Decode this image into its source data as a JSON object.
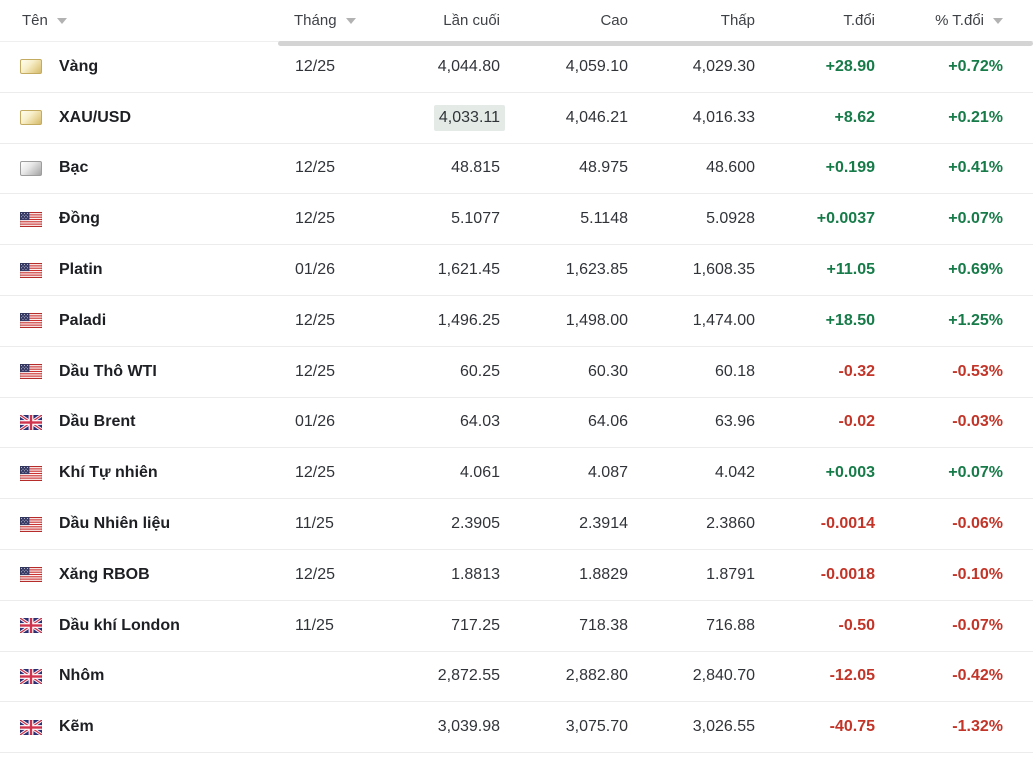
{
  "table": {
    "columns": [
      {
        "key": "name",
        "label": "Tên",
        "sortable": true
      },
      {
        "key": "month",
        "label": "Tháng",
        "sortable": true
      },
      {
        "key": "last",
        "label": "Lần cuối",
        "sortable": false
      },
      {
        "key": "high",
        "label": "Cao",
        "sortable": false
      },
      {
        "key": "low",
        "label": "Thấp",
        "sortable": false
      },
      {
        "key": "change",
        "label": "T.đổi",
        "sortable": false
      },
      {
        "key": "change_pct",
        "label": "% T.đổi",
        "sortable": true
      }
    ],
    "rows": [
      {
        "name": "Vàng",
        "icon": "gold-bar",
        "month": "12/25",
        "last": "4,044.80",
        "high": "4,059.10",
        "low": "4,029.30",
        "change": "+28.90",
        "change_pct": "+0.72%",
        "direction": "up",
        "last_flash": false
      },
      {
        "name": "XAU/USD",
        "icon": "gold-bar",
        "month": "",
        "last": "4,033.11",
        "high": "4,046.21",
        "low": "4,016.33",
        "change": "+8.62",
        "change_pct": "+0.21%",
        "direction": "up",
        "last_flash": true
      },
      {
        "name": "Bạc",
        "icon": "silver-bar",
        "month": "12/25",
        "last": "48.815",
        "high": "48.975",
        "low": "48.600",
        "change": "+0.199",
        "change_pct": "+0.41%",
        "direction": "up",
        "last_flash": false
      },
      {
        "name": "Đồng",
        "icon": "us-flag",
        "month": "12/25",
        "last": "5.1077",
        "high": "5.1148",
        "low": "5.0928",
        "change": "+0.0037",
        "change_pct": "+0.07%",
        "direction": "up",
        "last_flash": false
      },
      {
        "name": "Platin",
        "icon": "us-flag",
        "month": "01/26",
        "last": "1,621.45",
        "high": "1,623.85",
        "low": "1,608.35",
        "change": "+11.05",
        "change_pct": "+0.69%",
        "direction": "up",
        "last_flash": false
      },
      {
        "name": "Paladi",
        "icon": "us-flag",
        "month": "12/25",
        "last": "1,496.25",
        "high": "1,498.00",
        "low": "1,474.00",
        "change": "+18.50",
        "change_pct": "+1.25%",
        "direction": "up",
        "last_flash": false
      },
      {
        "name": "Dầu Thô WTI",
        "icon": "us-flag",
        "month": "12/25",
        "last": "60.25",
        "high": "60.30",
        "low": "60.18",
        "change": "-0.32",
        "change_pct": "-0.53%",
        "direction": "down",
        "last_flash": false
      },
      {
        "name": "Dầu Brent",
        "icon": "uk-flag",
        "month": "01/26",
        "last": "64.03",
        "high": "64.06",
        "low": "63.96",
        "change": "-0.02",
        "change_pct": "-0.03%",
        "direction": "down",
        "last_flash": false
      },
      {
        "name": "Khí Tự nhiên",
        "icon": "us-flag",
        "month": "12/25",
        "last": "4.061",
        "high": "4.087",
        "low": "4.042",
        "change": "+0.003",
        "change_pct": "+0.07%",
        "direction": "up",
        "last_flash": false
      },
      {
        "name": "Dầu Nhiên liệu",
        "icon": "us-flag",
        "month": "11/25",
        "last": "2.3905",
        "high": "2.3914",
        "low": "2.3860",
        "change": "-0.0014",
        "change_pct": "-0.06%",
        "direction": "down",
        "last_flash": false
      },
      {
        "name": "Xăng RBOB",
        "icon": "us-flag",
        "month": "12/25",
        "last": "1.8813",
        "high": "1.8829",
        "low": "1.8791",
        "change": "-0.0018",
        "change_pct": "-0.10%",
        "direction": "down",
        "last_flash": false
      },
      {
        "name": "Dầu khí London",
        "icon": "uk-flag",
        "month": "11/25",
        "last": "717.25",
        "high": "718.38",
        "low": "716.88",
        "change": "-0.50",
        "change_pct": "-0.07%",
        "direction": "down",
        "last_flash": false
      },
      {
        "name": "Nhôm",
        "icon": "uk-flag",
        "month": "",
        "last": "2,872.55",
        "high": "2,882.80",
        "low": "2,840.70",
        "change": "-12.05",
        "change_pct": "-0.42%",
        "direction": "down",
        "last_flash": false
      },
      {
        "name": "Kẽm",
        "icon": "uk-flag",
        "month": "",
        "last": "3,039.98",
        "high": "3,075.70",
        "low": "3,026.55",
        "change": "-40.75",
        "change_pct": "-1.32%",
        "direction": "down",
        "last_flash": false
      }
    ]
  },
  "colors": {
    "positive": "#177b49",
    "negative": "#c23428",
    "flash_background": "#e4ebe6"
  }
}
